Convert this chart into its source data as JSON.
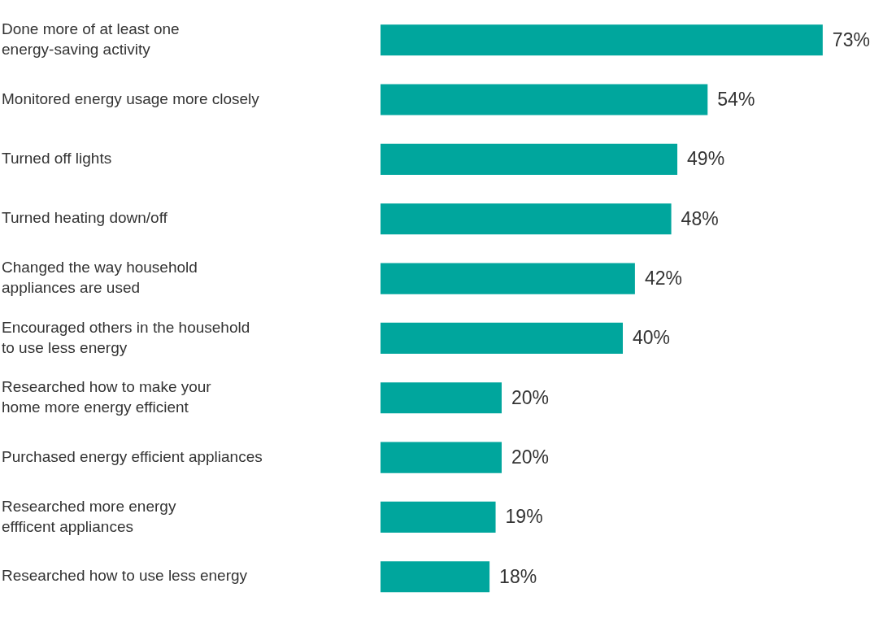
{
  "chart_data": {
    "type": "bar",
    "orientation": "horizontal",
    "categories": [
      "Done more of at least one\nenergy-saving activity",
      "Monitored energy usage more closely",
      "Turned off lights",
      "Turned heating down/off",
      "Changed the way household\nappliances are used",
      "Encouraged others in the household\nto use less energy",
      "Researched how to make your\nhome more energy efficient",
      "Purchased energy efficient appliances",
      "Researched more energy\neffficent appliances",
      "Researched how to use less energy"
    ],
    "values": [
      73,
      54,
      49,
      48,
      42,
      40,
      20,
      20,
      19,
      18
    ],
    "value_labels": [
      "73%",
      "54%",
      "49%",
      "48%",
      "42%",
      "40%",
      "20%",
      "20%",
      "19%",
      "18%"
    ],
    "color": "#00a69d",
    "legend": false
  }
}
